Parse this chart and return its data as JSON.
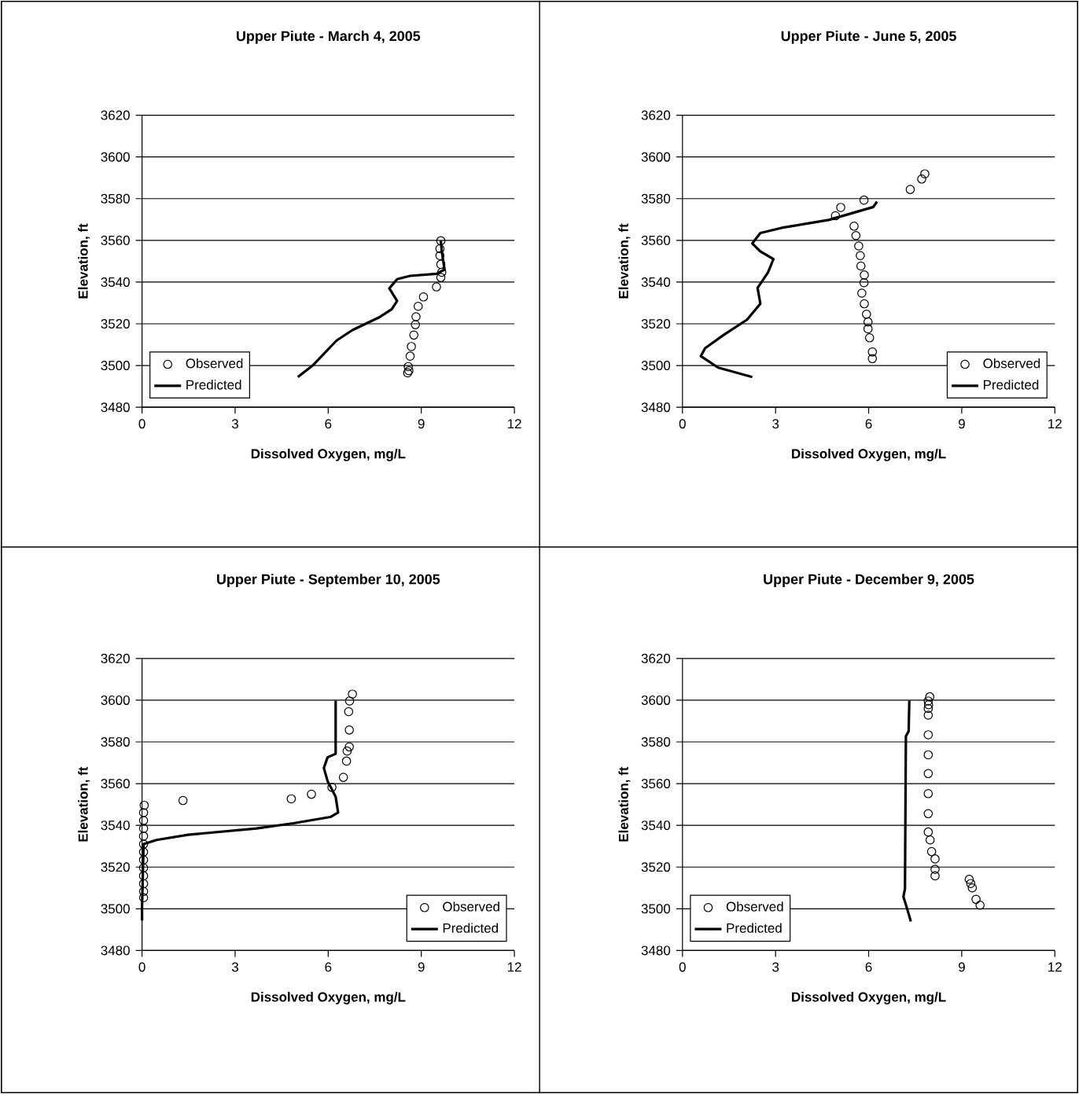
{
  "chart_data": [
    {
      "type": "scatter",
      "title": "Upper Piute - March 4, 2005",
      "xlabel": "Dissolved Oxygen, mg/L",
      "ylabel": "Elevation, ft",
      "xlim": [
        0,
        12
      ],
      "ylim": [
        3480,
        3620
      ],
      "xticks": [
        0,
        3,
        6,
        9,
        12
      ],
      "yticks": [
        3480,
        3500,
        3520,
        3540,
        3560,
        3580,
        3600,
        3620
      ],
      "grid": "y",
      "legend": "bottom left",
      "series": [
        {
          "name": "Observed",
          "type": "scatter",
          "marker": "circle",
          "color": "#000000",
          "x": [
            9.63,
            9.6,
            9.6,
            9.63,
            9.66,
            9.63,
            9.49,
            9.07,
            8.9,
            8.83,
            8.81,
            8.76,
            8.68,
            8.64,
            8.58,
            8.6,
            8.56
          ],
          "values": [
            3559.8,
            3556.0,
            3552.7,
            3548.5,
            3544.7,
            3542.2,
            3537.7,
            3532.9,
            3528.4,
            3523.4,
            3519.6,
            3514.6,
            3509.1,
            3504.5,
            3499.5,
            3497.5,
            3496.5
          ]
        },
        {
          "name": "Predicted",
          "type": "line",
          "line_style": "solid",
          "color": "#000000",
          "x": [
            5.02,
            5.5,
            6.27,
            6.78,
            7.63,
            8.05,
            8.22,
            7.97,
            8.22,
            8.64,
            9.49,
            9.75,
            9.66,
            9.63
          ],
          "values": [
            3494.5,
            3500,
            3512,
            3517,
            3523,
            3527,
            3531,
            3537,
            3541.4,
            3543,
            3544,
            3546,
            3554.7,
            3559.8
          ]
        }
      ]
    },
    {
      "type": "scatter",
      "title": "Upper Piute - June 5, 2005",
      "xlabel": "Dissolved Oxygen, mg/L",
      "ylabel": "Elevation, ft",
      "xlim": [
        0,
        12
      ],
      "ylim": [
        3480,
        3620
      ],
      "xticks": [
        0,
        3,
        6,
        9,
        12
      ],
      "yticks": [
        3480,
        3500,
        3520,
        3540,
        3560,
        3580,
        3600,
        3620
      ],
      "grid": "y",
      "legend": "bottom right",
      "series": [
        {
          "name": "Observed",
          "type": "scatter",
          "marker": "circle",
          "color": "#000000",
          "x": [
            7.81,
            7.71,
            7.34,
            5.85,
            5.1,
            4.93,
            5.53,
            5.59,
            5.68,
            5.73,
            5.75,
            5.86,
            5.85,
            5.78,
            5.86,
            5.93,
            5.98,
            5.98,
            6.03,
            6.12,
            6.12
          ],
          "values": [
            3591.9,
            3589.4,
            3584.4,
            3579.3,
            3575.8,
            3571.8,
            3566.8,
            3562.3,
            3557.3,
            3552.7,
            3547.7,
            3543.4,
            3539.7,
            3534.7,
            3529.6,
            3524.6,
            3520.9,
            3517.6,
            3513.3,
            3506.5,
            3503.3
          ]
        },
        {
          "name": "Predicted",
          "type": "line",
          "line_style": "solid",
          "color": "#000000",
          "x": [
            6.27,
            6.15,
            4.71,
            3.19,
            2.51,
            2.25,
            2.51,
            2.93,
            2.76,
            2.42,
            2.51,
            2.08,
            1.32,
            0.73,
            0.59,
            1.15,
            2.25
          ],
          "values": [
            3578.6,
            3576,
            3569.8,
            3566,
            3563.5,
            3558.5,
            3554.7,
            3551,
            3544.7,
            3537.2,
            3529.6,
            3522,
            3514.6,
            3508.3,
            3504.5,
            3499,
            3494.5
          ]
        }
      ]
    },
    {
      "type": "scatter",
      "title": "Upper Piute - September 10, 2005",
      "xlabel": "Dissolved Oxygen, mg/L",
      "ylabel": "Elevation, ft",
      "xlim": [
        0,
        12
      ],
      "ylim": [
        3480,
        3620
      ],
      "xticks": [
        0,
        3,
        6,
        9,
        12
      ],
      "yticks": [
        3480,
        3500,
        3520,
        3540,
        3560,
        3580,
        3600,
        3620
      ],
      "grid": "y",
      "legend": "bottom right",
      "series": [
        {
          "name": "Observed",
          "type": "scatter",
          "marker": "circle",
          "color": "#000000",
          "x": [
            6.78,
            6.69,
            6.66,
            6.68,
            6.68,
            6.61,
            6.59,
            6.49,
            6.12,
            5.46,
            4.81,
            1.32,
            0.07,
            0.05,
            0.05,
            0.05,
            0.05,
            0.05,
            0.05,
            0.05,
            0.05,
            0.05,
            0.05,
            0.05,
            0.05
          ],
          "values": [
            3602.9,
            3599.6,
            3594.5,
            3585.7,
            3577.6,
            3575.6,
            3570.8,
            3563,
            3558.2,
            3554.9,
            3552.7,
            3551.9,
            3549.6,
            3546.1,
            3542.3,
            3538.5,
            3534.8,
            3531,
            3527.2,
            3523.4,
            3519.6,
            3515.8,
            3512,
            3508.3,
            3505.3
          ]
        },
        {
          "name": "Predicted",
          "type": "line",
          "line_style": "solid",
          "color": "#000000",
          "x": [
            0,
            0,
            0.05,
            0.47,
            1.49,
            3.69,
            4.88,
            6.07,
            6.32,
            6.24,
            5.98,
            5.86,
            5.98,
            6.24,
            6.24
          ],
          "values": [
            3494.4,
            3500.7,
            3531,
            3533,
            3535.5,
            3538.5,
            3541,
            3544,
            3546.1,
            3553.7,
            3561.2,
            3567.5,
            3572.6,
            3574.3,
            3599.8
          ]
        }
      ]
    },
    {
      "type": "scatter",
      "title": "Upper Piute - December 9, 2005",
      "xlabel": "Dissolved Oxygen, mg/L",
      "ylabel": "Elevation, ft",
      "xlim": [
        0,
        12
      ],
      "ylim": [
        3480,
        3620
      ],
      "xticks": [
        0,
        3,
        6,
        9,
        12
      ],
      "yticks": [
        3480,
        3500,
        3520,
        3540,
        3560,
        3580,
        3600,
        3620
      ],
      "grid": "y",
      "legend": "bottom left",
      "series": [
        {
          "name": "Observed",
          "type": "scatter",
          "marker": "circle",
          "color": "#000000",
          "x": [
            7.97,
            7.92,
            7.93,
            7.92,
            7.92,
            7.92,
            7.92,
            7.92,
            7.92,
            7.92,
            7.92,
            7.98,
            8.03,
            8.14,
            8.14,
            8.14,
            9.24,
            9.29,
            9.34,
            9.46,
            9.59
          ],
          "values": [
            3601.6,
            3599.6,
            3597.8,
            3596,
            3592.8,
            3583.4,
            3573.8,
            3564.8,
            3555.2,
            3545.6,
            3536.8,
            3533,
            3527.4,
            3523.9,
            3518.9,
            3515.8,
            3514.1,
            3512.1,
            3510,
            3504.5,
            3501.7
          ]
        },
        {
          "name": "Predicted",
          "type": "line",
          "line_style": "solid",
          "color": "#000000",
          "x": [
            7.31,
            7.29,
            7.2,
            7.17,
            7.12,
            7.25,
            7.36
          ],
          "values": [
            3599.8,
            3585.2,
            3582.7,
            3509.5,
            3505.8,
            3499.5,
            3493.9
          ]
        }
      ]
    }
  ]
}
